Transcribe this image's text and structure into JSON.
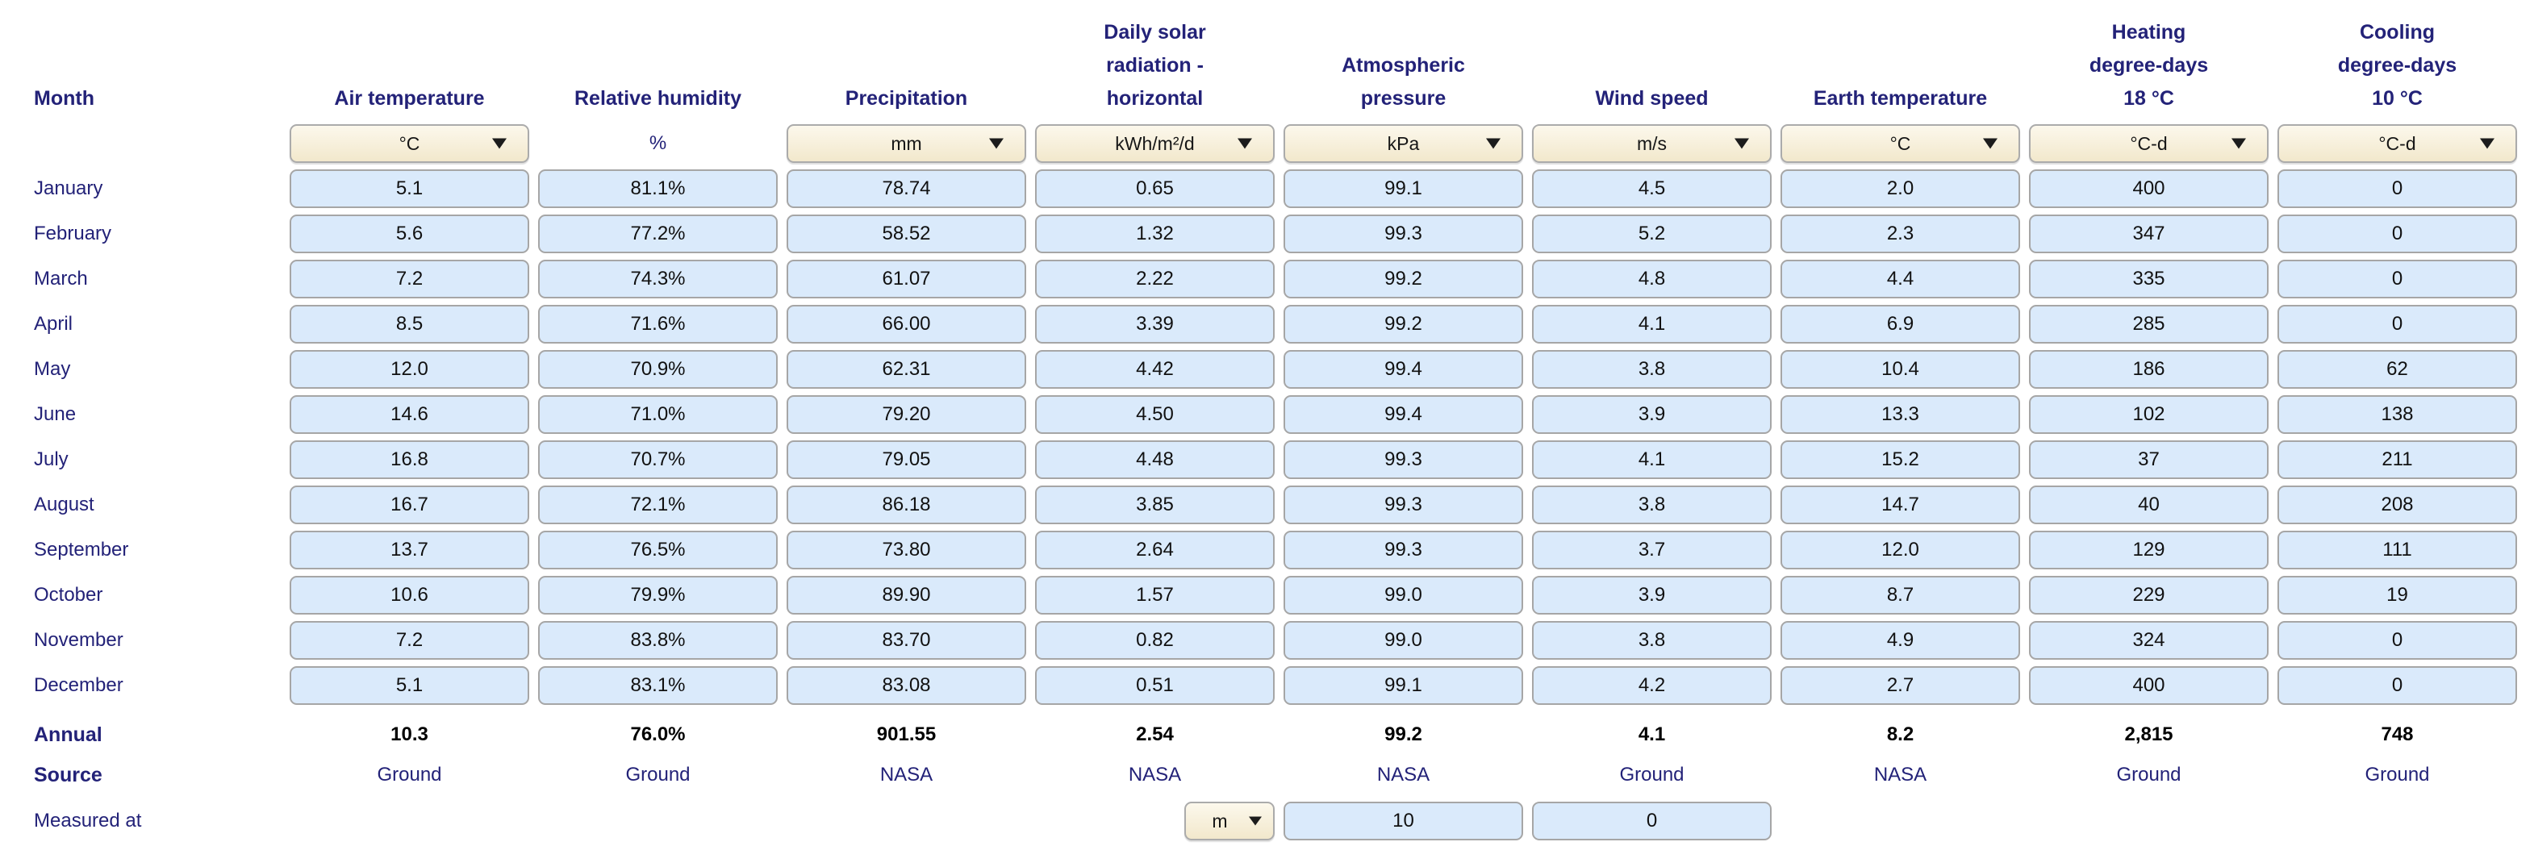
{
  "colors": {
    "header_navy": "#232278",
    "data_cell_blue": "#DAEAFB",
    "cell_border_gray": "#A6A6A6",
    "unit_cell_tan_top": "#FCF8EC",
    "unit_cell_tan_bottom": "#F2E8CC",
    "value_text": "#111111",
    "background": "#FFFFFF"
  },
  "table": {
    "row_label_header": "Month",
    "columns": [
      {
        "key": "air-temperature",
        "label_lines": [
          "Air temperature"
        ],
        "unit": "°C",
        "unit_type": "dropdown"
      },
      {
        "key": "relative-humidity",
        "label_lines": [
          "Relative humidity"
        ],
        "unit": "%",
        "unit_type": "text"
      },
      {
        "key": "precipitation",
        "label_lines": [
          "Precipitation"
        ],
        "unit": "mm",
        "unit_type": "dropdown"
      },
      {
        "key": "daily-solar-radiation-horizontal",
        "label_lines": [
          "Daily solar",
          "radiation -",
          "horizontal"
        ],
        "unit": "kWh/m²/d",
        "unit_type": "dropdown"
      },
      {
        "key": "atmospheric-pressure",
        "label_lines": [
          "Atmospheric",
          "pressure"
        ],
        "unit": "kPa",
        "unit_type": "dropdown"
      },
      {
        "key": "wind-speed",
        "label_lines": [
          "Wind speed"
        ],
        "unit": "m/s",
        "unit_type": "dropdown"
      },
      {
        "key": "earth-temperature",
        "label_lines": [
          "Earth temperature"
        ],
        "unit": "°C",
        "unit_type": "dropdown"
      },
      {
        "key": "heating-degree-days",
        "label_lines": [
          "Heating",
          "degree-days",
          "18 °C"
        ],
        "unit": "°C-d",
        "unit_type": "dropdown"
      },
      {
        "key": "cooling-degree-days",
        "label_lines": [
          "Cooling",
          "degree-days",
          "10 °C"
        ],
        "unit": "°C-d",
        "unit_type": "dropdown"
      }
    ],
    "months": [
      "January",
      "February",
      "March",
      "April",
      "May",
      "June",
      "July",
      "August",
      "September",
      "October",
      "November",
      "December"
    ],
    "values": [
      [
        "5.1",
        "81.1%",
        "78.74",
        "0.65",
        "99.1",
        "4.5",
        "2.0",
        "400",
        "0"
      ],
      [
        "5.6",
        "77.2%",
        "58.52",
        "1.32",
        "99.3",
        "5.2",
        "2.3",
        "347",
        "0"
      ],
      [
        "7.2",
        "74.3%",
        "61.07",
        "2.22",
        "99.2",
        "4.8",
        "4.4",
        "335",
        "0"
      ],
      [
        "8.5",
        "71.6%",
        "66.00",
        "3.39",
        "99.2",
        "4.1",
        "6.9",
        "285",
        "0"
      ],
      [
        "12.0",
        "70.9%",
        "62.31",
        "4.42",
        "99.4",
        "3.8",
        "10.4",
        "186",
        "62"
      ],
      [
        "14.6",
        "71.0%",
        "79.20",
        "4.50",
        "99.4",
        "3.9",
        "13.3",
        "102",
        "138"
      ],
      [
        "16.8",
        "70.7%",
        "79.05",
        "4.48",
        "99.3",
        "4.1",
        "15.2",
        "37",
        "211"
      ],
      [
        "16.7",
        "72.1%",
        "86.18",
        "3.85",
        "99.3",
        "3.8",
        "14.7",
        "40",
        "208"
      ],
      [
        "13.7",
        "76.5%",
        "73.80",
        "2.64",
        "99.3",
        "3.7",
        "12.0",
        "129",
        "111"
      ],
      [
        "10.6",
        "79.9%",
        "89.90",
        "1.57",
        "99.0",
        "3.9",
        "8.7",
        "229",
        "19"
      ],
      [
        "7.2",
        "83.8%",
        "83.70",
        "0.82",
        "99.0",
        "3.8",
        "4.9",
        "324",
        "0"
      ],
      [
        "5.1",
        "83.1%",
        "83.08",
        "0.51",
        "99.1",
        "4.2",
        "2.7",
        "400",
        "0"
      ]
    ],
    "annual": {
      "label": "Annual",
      "values": [
        "10.3",
        "76.0%",
        "901.55",
        "2.54",
        "99.2",
        "4.1",
        "8.2",
        "2,815",
        "748"
      ]
    },
    "source": {
      "label": "Source",
      "values": [
        "Ground",
        "Ground",
        "NASA",
        "NASA",
        "NASA",
        "Ground",
        "NASA",
        "Ground",
        "Ground"
      ]
    },
    "measured_at": {
      "label": "Measured at",
      "unit": "m",
      "wind_height": "10",
      "earth_depth": "0"
    }
  }
}
